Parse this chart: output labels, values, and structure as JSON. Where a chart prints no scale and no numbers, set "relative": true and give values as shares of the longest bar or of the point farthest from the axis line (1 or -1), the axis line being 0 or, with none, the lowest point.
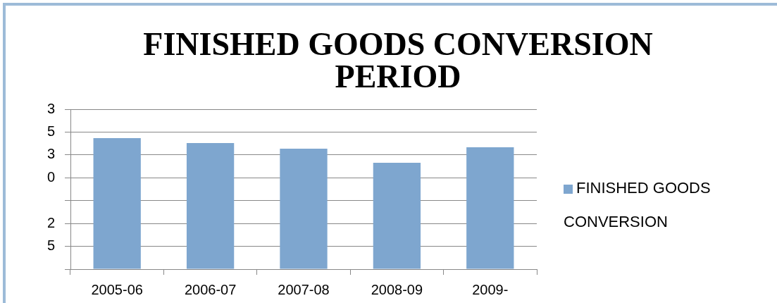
{
  "chart_data": {
    "type": "bar",
    "title": "FINISHED GOODS CONVERSION PERIOD",
    "categories": [
      "2005-06",
      "2006-07",
      "2007-08",
      "2008-09",
      "2009-"
    ],
    "series": [
      {
        "name": "FINISHED GOODS CONVERSION",
        "color": "#7ea6cf",
        "values": [
          1,
          0.962,
          0.919,
          0.812,
          0.93
        ]
      }
    ],
    "relative": true,
    "annotations": [
      "3",
      "5",
      "3",
      "0",
      "2",
      "5"
    ],
    "grid": "y",
    "legend": "right"
  }
}
